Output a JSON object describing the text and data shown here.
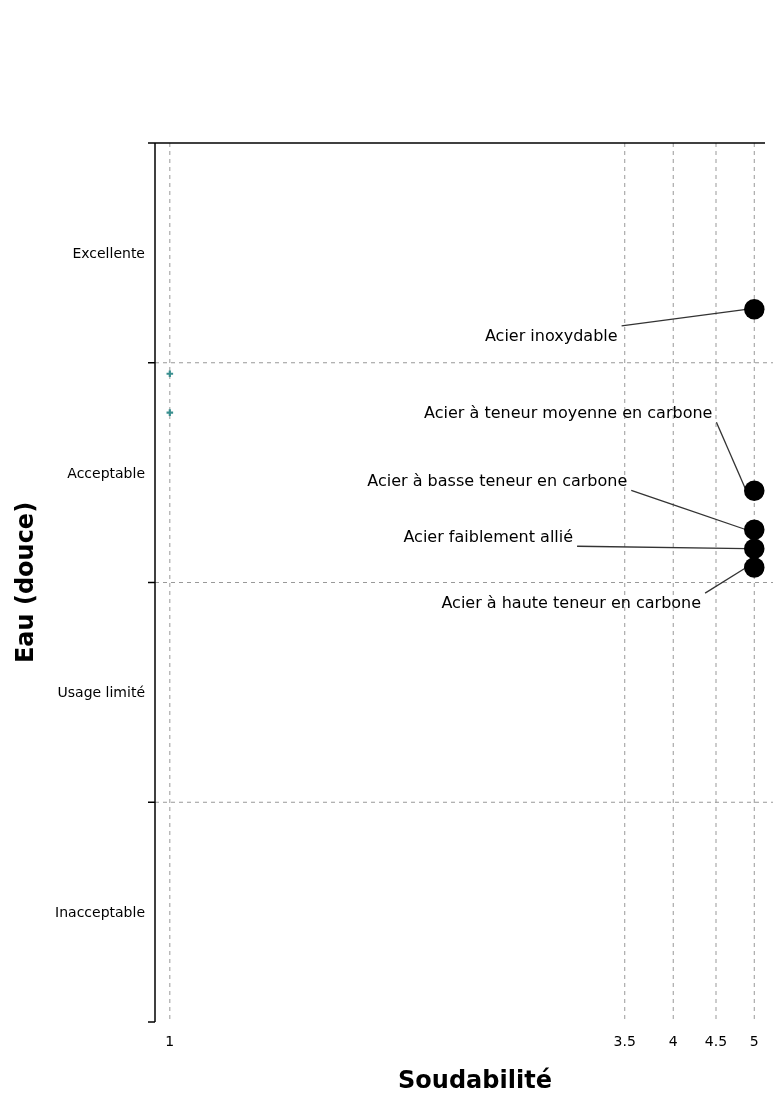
{
  "chart_data": {
    "type": "scatter",
    "orientation": "horizontal",
    "xlabel": "Soudabilité",
    "ylabel": "Eau (douce)",
    "categories": [
      "Excellente",
      "Acceptable",
      "Usage limité",
      "Inacceptable"
    ],
    "xlim": [
      0.96,
      5.15
    ],
    "xticks": [
      1,
      3.5,
      4,
      4.5,
      5
    ],
    "log": "x",
    "grid": true,
    "marker": "circle",
    "series": [
      {
        "name": "Acier inoxydable",
        "color": "#000000",
        "values": [
          5,
          null,
          null,
          null
        ]
      },
      {
        "name": "Acier à teneur moyenne en carbone",
        "color": "#000000",
        "values": [
          null,
          5,
          null,
          null
        ]
      },
      {
        "name": "Acier à basse teneur en carbone",
        "color": "#000000",
        "values": [
          null,
          5,
          null,
          null
        ]
      },
      {
        "name": "Acier faiblement allié",
        "color": "#000000",
        "values": [
          null,
          5,
          null,
          null
        ]
      },
      {
        "name": "Acier à haute teneur en carbone",
        "color": "#000000",
        "values": [
          null,
          5,
          null,
          null
        ]
      },
      {
        "color": "#3a8f8f",
        "marker": "cross",
        "values": [
          null,
          1,
          null,
          null
        ]
      },
      {
        "color": "#3a8f8f",
        "marker": "cross",
        "values": [
          null,
          1,
          null,
          null
        ]
      }
    ]
  }
}
